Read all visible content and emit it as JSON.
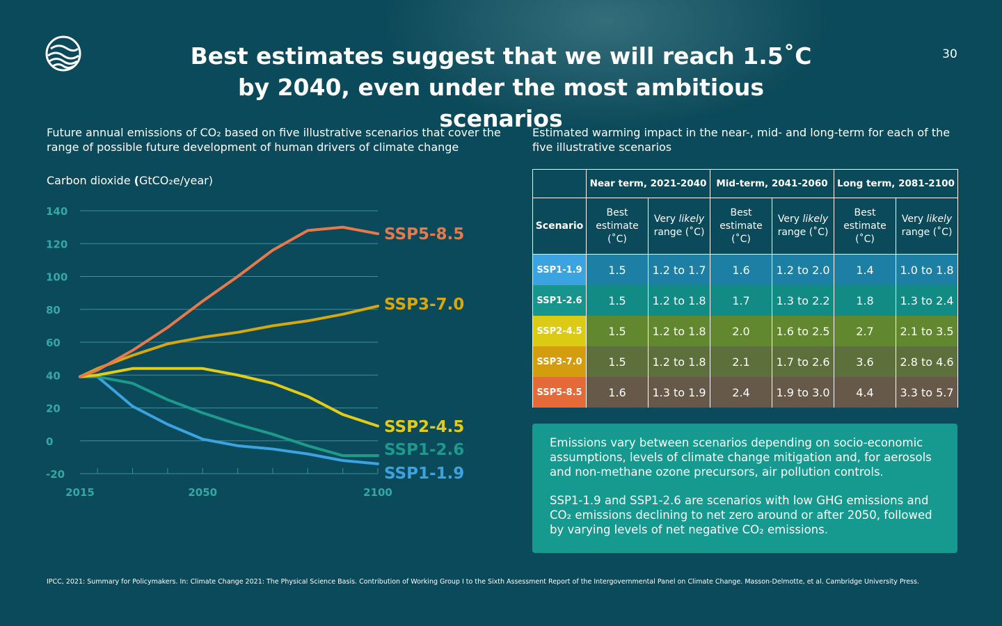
{
  "slide": {
    "title": "Best estimates suggest that we will reach 1.5˚C by 2040, even under the most ambitious scenarios",
    "page_number": "30",
    "logo_icon": "wave-globe-icon",
    "background_color": "#0b4a5a"
  },
  "chart_section": {
    "description": "Future annual emissions of CO₂ based on five illustrative scenarios that cover the range of possible future development of human drivers of climate change",
    "unit_prefix": "Carbon dioxide ",
    "unit_open": "(",
    "unit_text": "GtCO₂e/year)"
  },
  "chart_data": {
    "type": "line",
    "title": "",
    "ylabel": "Carbon dioxide (GtCO₂e/year)",
    "xlabel": "",
    "xlim": [
      2015,
      2100
    ],
    "ylim": [
      -20,
      140
    ],
    "x_ticks": [
      2015,
      2050,
      2100
    ],
    "y_ticks": [
      140,
      120,
      100,
      80,
      60,
      40,
      20,
      0,
      -20
    ],
    "grid": true,
    "legend": "direct labels at right end of lines",
    "x": [
      2015,
      2020,
      2030,
      2040,
      2050,
      2060,
      2070,
      2080,
      2090,
      2100
    ],
    "series": [
      {
        "name": "SSP5-8.5",
        "color": "#e8794a",
        "values": [
          39,
          43,
          55,
          69,
          85,
          100,
          116,
          128,
          130,
          126
        ]
      },
      {
        "name": "SSP3-7.0",
        "color": "#d7a80e",
        "values": [
          39,
          44,
          52,
          59,
          63,
          66,
          70,
          73,
          77,
          82
        ]
      },
      {
        "name": "SSP2-4.5",
        "color": "#e3cc17",
        "values": [
          39,
          40,
          44,
          44,
          44,
          40,
          35,
          27,
          16,
          9
        ]
      },
      {
        "name": "SSP1-2.6",
        "color": "#1c9a8c",
        "values": [
          39,
          39,
          35,
          25,
          17,
          10,
          4,
          -3,
          -9,
          -9
        ]
      },
      {
        "name": "SSP1-1.9",
        "color": "#3ba3df",
        "values": [
          39,
          39,
          21,
          10,
          1,
          -3,
          -5,
          -8,
          -12,
          -14
        ]
      }
    ],
    "gridline_color": "#3f8fa0",
    "tick_color": "#35a7a4"
  },
  "table_section": {
    "description": "Estimated warming impact in the near-, mid- and long-term for each of the five illustrative scenarios",
    "periods": [
      "Near term, 2021-2040",
      "Mid-term, 2041-2060",
      "Long term, 2081-2100"
    ],
    "scenario_header": "Scenario",
    "best_header": [
      "Best",
      "estimate",
      "(˚C)"
    ],
    "range_header": {
      "prefix": "Very ",
      "emphasis": "likely",
      "suffix": "range (˚C)"
    },
    "rows": [
      {
        "scenario": "SSP1-1.9",
        "scen_color": "#3ba3df",
        "row_color": "#1e7fa4",
        "cells": [
          "1.5",
          "1.2 to 1.7",
          "1.6",
          "1.2 to 2.0",
          "1.4",
          "1.0 to 1.8"
        ]
      },
      {
        "scenario": "SSP1-2.6",
        "scen_color": "#17948c",
        "row_color": "#138b85",
        "cells": [
          "1.5",
          "1.2 to 1.8",
          "1.7",
          "1.3 to 2.2",
          "1.8",
          "1.3 to 2.4"
        ]
      },
      {
        "scenario": "SSP2-4.5",
        "scen_color": "#dccb15",
        "row_color": "#62882f",
        "cells": [
          "1.5",
          "1.2 to 1.8",
          "2.0",
          "1.6 to 2.5",
          "2.7",
          "2.1 to 3.5"
        ]
      },
      {
        "scenario": "SSP3-7.0",
        "scen_color": "#d39d0d",
        "row_color": "#5d6f3a",
        "cells": [
          "1.5",
          "1.2 to 1.8",
          "2.1",
          "1.7 to 2.6",
          "3.6",
          "2.8 to 4.6"
        ]
      },
      {
        "scenario": "SSP5-8.5",
        "scen_color": "#e46a39",
        "row_color": "#67594a",
        "cells": [
          "1.6",
          "1.3 to 1.9",
          "2.4",
          "1.9 to 3.0",
          "4.4",
          "3.3 to 5.7"
        ]
      }
    ]
  },
  "info_box": {
    "color": "#16998f",
    "paragraph_1": "Emissions vary between scenarios depending on socio-economic assumptions, levels of climate change mitigation and, for aerosols and non-methane ozone precursors, air pollution controls.",
    "paragraph_2": "SSP1-1.9 and SSP1-2.6 are scenarios with low GHG emissions and CO₂ emissions declining to net zero around or after 2050, followed by varying levels of net negative CO₂ emissions."
  },
  "citation": "IPCC, 2021: Summary for Policymakers. In: Climate Change 2021: The Physical Science Basis. Contribution of Working Group I to the Sixth Assessment Report of the Intergovernmental Panel on Climate Change. Masson-Delmotte, et al. Cambridge University Press."
}
